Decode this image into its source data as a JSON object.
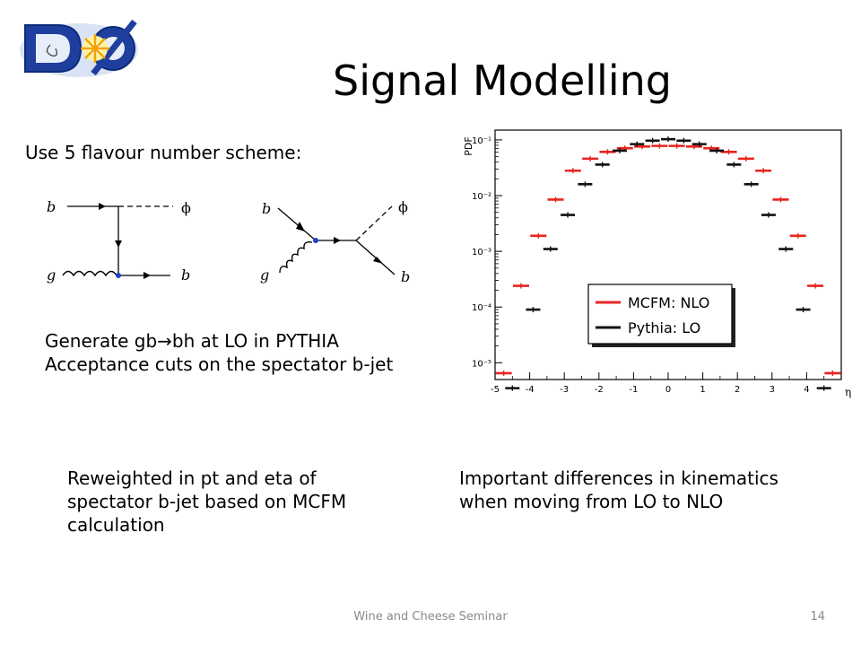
{
  "slide": {
    "title": "Signal Modelling",
    "scheme_text": "Use 5 flavour number scheme:",
    "generate_lines": [
      "Generate gb→bh at LO in PYTHIA",
      "Acceptance cuts on the spectator b-jet"
    ],
    "reweight_lines": [
      "Reweighted in pt and eta of",
      "spectator b-jet based on MCFM",
      "calculation"
    ],
    "diff_lines": [
      "Important differences in kinematics",
      "when moving from LO to NLO"
    ],
    "footer": "Wine and Cheese Seminar",
    "page_number": "14",
    "logo_text": "DØ"
  },
  "diagrams": {
    "d1": {
      "b_in": "b",
      "g_in": "g",
      "phi_out": "ϕ",
      "b_out": "b"
    },
    "d2": {
      "b_in": "b",
      "g_in": "g",
      "phi_out": "ϕ",
      "b_out": "b"
    }
  },
  "chart_data": {
    "type": "scatter",
    "ylabel": "PDF",
    "xlabel": "η",
    "yscale": "log",
    "ylim": [
      5e-06,
      0.15
    ],
    "xlim": [
      -5,
      5
    ],
    "x_ticks": [
      "-5",
      "-4",
      "-3",
      "-2",
      "-1",
      "0",
      "1",
      "2",
      "3",
      "4"
    ],
    "y_ticks": [
      "10⁻¹",
      "10⁻²",
      "10⁻³",
      "10⁻⁴",
      "10⁻⁵"
    ],
    "legend_position": "lower-right",
    "series": [
      {
        "name": "MCFM: NLO",
        "color": "#e8231f",
        "x": [
          -4.75,
          -4.25,
          -3.75,
          -3.25,
          -2.75,
          -2.25,
          -1.75,
          -1.25,
          -0.75,
          -0.25,
          0.25,
          0.75,
          1.25,
          1.75,
          2.25,
          2.75,
          3.25,
          3.75,
          4.25,
          4.75
        ],
        "y": [
          6.5e-06,
          0.00024,
          0.0019,
          0.0085,
          0.028,
          0.046,
          0.061,
          0.071,
          0.076,
          0.078,
          0.078,
          0.076,
          0.071,
          0.061,
          0.046,
          0.028,
          0.0085,
          0.0019,
          0.00024,
          6.5e-06
        ]
      },
      {
        "name": "Pythia: LO",
        "color": "#111111",
        "x": [
          -4.5,
          -3.9,
          -3.4,
          -2.9,
          -2.4,
          -1.9,
          -1.4,
          -0.9,
          -0.45,
          0,
          0.45,
          0.9,
          1.4,
          1.9,
          2.4,
          2.9,
          3.4,
          3.9,
          4.5
        ],
        "y": [
          3.5e-06,
          9e-05,
          0.0011,
          0.0045,
          0.016,
          0.036,
          0.064,
          0.084,
          0.097,
          0.103,
          0.097,
          0.084,
          0.064,
          0.036,
          0.016,
          0.0045,
          0.0011,
          9e-05,
          3.5e-06
        ]
      }
    ]
  }
}
